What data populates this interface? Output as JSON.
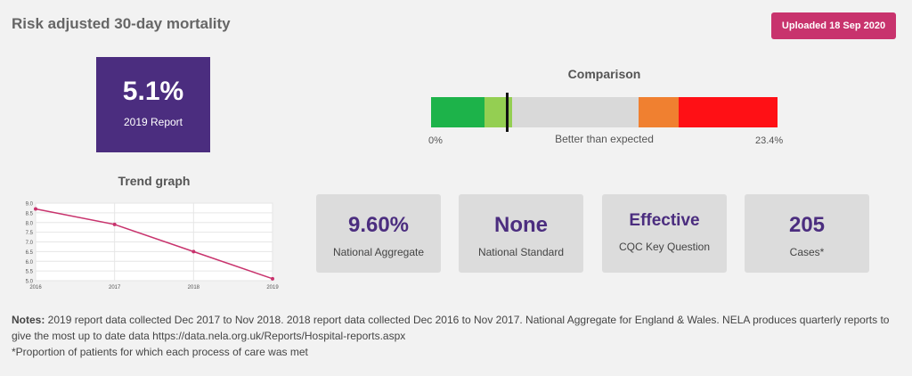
{
  "header": {
    "title": "Risk adjusted 30-day mortality",
    "upload_label": "Uploaded 18 Sep 2020"
  },
  "report": {
    "value": "5.1%",
    "label": "2019 Report"
  },
  "comparison": {
    "title": "Comparison",
    "min_label": "0%",
    "max_label": "23.4%",
    "status_label": "Better than expected",
    "marker_value": 5.1,
    "colors": {
      "dark_green": "#1db34a",
      "light_green": "#94cf52",
      "grey": "#d9d9d9",
      "orange": "#f08030",
      "red": "#ff1015",
      "marker": "#111111"
    }
  },
  "trend": {
    "title": "Trend graph"
  },
  "chart_data": {
    "type": "line",
    "x": [
      "2016",
      "2017",
      "2018",
      "2019"
    ],
    "series": [
      {
        "values": [
          8.7,
          7.9,
          6.5,
          5.1
        ]
      }
    ],
    "ylim": [
      5.0,
      9.0
    ],
    "yticks": [
      "9.0",
      "8.5",
      "8.0",
      "7.5",
      "7.0",
      "6.5",
      "6.0",
      "5.5",
      "5.0"
    ],
    "grid": true,
    "line_color": "#c8336d"
  },
  "stats": [
    {
      "value": "9.60%",
      "label": "National Aggregate"
    },
    {
      "value": "None",
      "label": "National Standard"
    },
    {
      "value": "Effective",
      "label": "CQC Key Question"
    },
    {
      "value": "205",
      "label": "Cases*"
    }
  ],
  "notes": {
    "heading": "Notes:",
    "text": " 2019 report data collected Dec 2017 to Nov 2018. 2018 report data collected Dec 2016 to Nov 2017. National Aggregate for England & Wales. NELA produces quarterly reports to give the most up to date data https://data.nela.org.uk/Reports/Hospital-reports.aspx",
    "footnote": "*Proportion of patients for which each process of care was met"
  }
}
